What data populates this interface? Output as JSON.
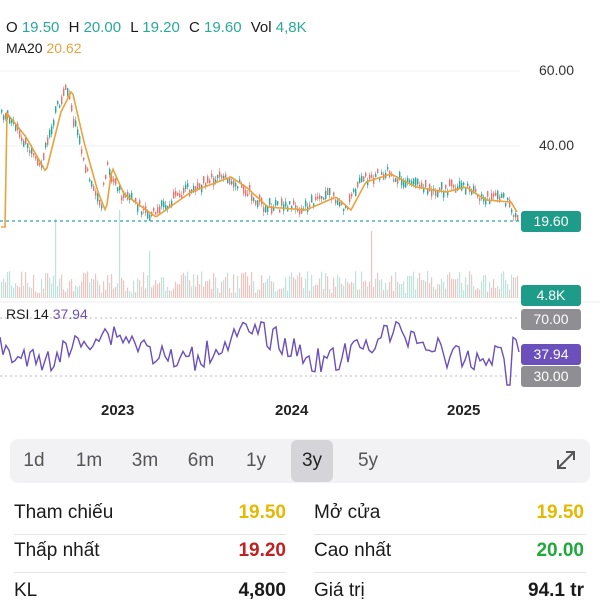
{
  "ohlc": {
    "o_label": "O",
    "o": "19.50",
    "h_label": "H",
    "h": "20.00",
    "l_label": "L",
    "l": "19.20",
    "c_label": "C",
    "c": "19.60",
    "vol_label": "Vol",
    "vol": "4,8K"
  },
  "ma": {
    "label": "MA20",
    "value": "20.62"
  },
  "price_axis": [
    "60.00",
    "40.00"
  ],
  "badges": {
    "price": "19.60",
    "volume": "4.8K",
    "rsi_high": "70.00",
    "rsi": "37.94",
    "rsi_low": "30.00"
  },
  "rsi": {
    "label": "RSI 14",
    "value": "37.94"
  },
  "x_axis": [
    "2023",
    "2024",
    "2025"
  ],
  "ranges": [
    {
      "label": "1d",
      "active": false
    },
    {
      "label": "1m",
      "active": false
    },
    {
      "label": "3m",
      "active": false
    },
    {
      "label": "6m",
      "active": false
    },
    {
      "label": "1y",
      "active": false
    },
    {
      "label": "3y",
      "active": true
    },
    {
      "label": "5y",
      "active": false
    }
  ],
  "stats": {
    "ref_label": "Tham chiếu",
    "ref_value": "19.50",
    "open_label": "Mở cửa",
    "open_value": "19.50",
    "low_label": "Thấp nhất",
    "low_value": "19.20",
    "high_label": "Cao nhất",
    "high_value": "20.00",
    "kl_label": "KL",
    "kl_value": "4,800",
    "value_label": "Giá trị",
    "value_value": "94.1 tr"
  },
  "colors": {
    "up": "#2aa89a",
    "down": "#e5736d",
    "ma": "#e8a33d",
    "rsi": "#6b4fbb",
    "badge_gray": "#8e8e93",
    "ref_yellow": "#e6b800",
    "low_red": "#c0201f",
    "high_green": "#1ea93a"
  },
  "icons": {
    "expand": "expand-arrows-icon"
  }
}
